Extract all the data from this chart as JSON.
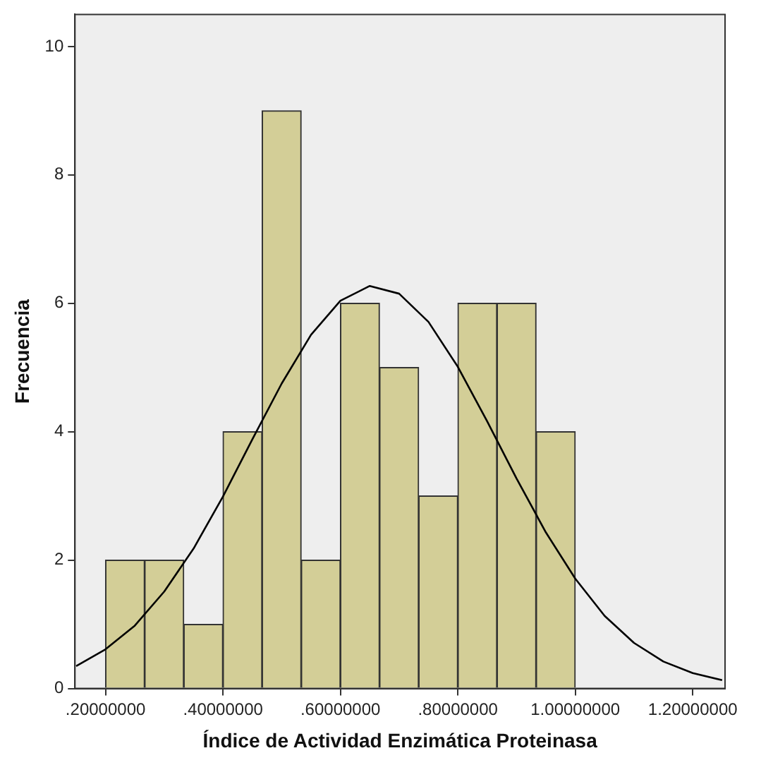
{
  "chart_data": {
    "type": "histogram",
    "xlabel": "Índice de Actividad Enzimática Proteinasa",
    "ylabel": "Frecuencia",
    "series": [
      {
        "color": "#d3ce97",
        "bins": [
          0.2,
          0.2667,
          0.3333,
          0.4,
          0.4667,
          0.5333,
          0.6,
          0.6667,
          0.7333,
          0.8,
          0.8667,
          0.9333,
          1.0
        ],
        "values": [
          2,
          2,
          1,
          4,
          9,
          2,
          6,
          5,
          3,
          6,
          6,
          4
        ]
      },
      {
        "type": "line",
        "color": "#000000",
        "x": [
          0.15,
          0.2,
          0.25,
          0.3,
          0.35,
          0.4,
          0.45,
          0.5,
          0.55,
          0.6,
          0.65,
          0.7,
          0.75,
          0.8,
          0.85,
          0.9,
          0.95,
          1.0,
          1.05,
          1.1,
          1.15,
          1.2,
          1.25
        ],
        "values": [
          0.35,
          0.61,
          0.98,
          1.51,
          2.18,
          2.99,
          3.88,
          4.75,
          5.51,
          6.04,
          6.27,
          6.15,
          5.71,
          5.01,
          4.16,
          3.27,
          2.43,
          1.71,
          1.13,
          0.71,
          0.42,
          0.24,
          0.13
        ]
      }
    ],
    "xlim": [
      0.148,
      1.255
    ],
    "xticks": [
      {
        "value": 0.2,
        "label": ".20000000"
      },
      {
        "value": 0.4,
        "label": ".40000000"
      },
      {
        "value": 0.6,
        "label": ".60000000"
      },
      {
        "value": 0.8,
        "label": ".80000000"
      },
      {
        "value": 1.0,
        "label": "1.00000000"
      },
      {
        "value": 1.2,
        "label": "1.20000000"
      }
    ],
    "ylim": [
      0,
      10.5
    ],
    "yticks": [
      0,
      2,
      4,
      6,
      8,
      10
    ],
    "grid": false,
    "legend": false,
    "marker": "none"
  }
}
